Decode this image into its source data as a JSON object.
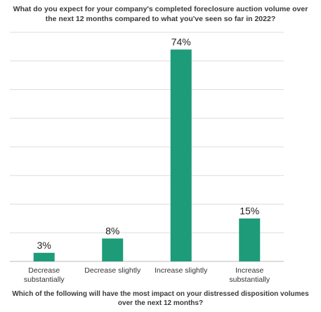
{
  "chart_data": {
    "type": "bar",
    "title": "What do you expect for your company's completed foreclosure auction volume over the next 12 months compared to what you've seen so far in 2022?",
    "categories": [
      [
        "Decrease",
        "substantially"
      ],
      [
        "Decrease slightly"
      ],
      [
        "Increase slightly"
      ],
      [
        "Increase",
        "substantially"
      ]
    ],
    "values": [
      3,
      8,
      74,
      15
    ],
    "data_labels": [
      "3%",
      "8%",
      "74%",
      "15%"
    ],
    "ylim": [
      0,
      80
    ],
    "grid": true,
    "bar_color": "#1e9b78",
    "gridline_color": "#dddddd"
  },
  "footer_question": "Which of the following will have the most impact on your distressed disposition volumes over the next 12 months?"
}
